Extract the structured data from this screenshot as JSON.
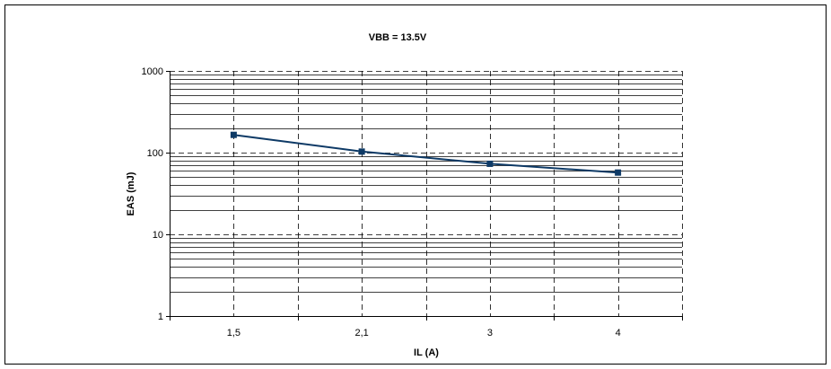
{
  "chart_data": {
    "type": "line",
    "title": "VBB = 13.5V",
    "xlabel": "IL (A)",
    "ylabel": "EAS (mJ)",
    "yscale": "log",
    "ylim": [
      1,
      1000
    ],
    "y_ticks": [
      "1",
      "10",
      "100",
      "1000"
    ],
    "categories": [
      "1,5",
      "2,1",
      "3",
      "4"
    ],
    "series": [
      {
        "values": [
          165,
          103,
          73,
          57
        ],
        "color": "#0e3a66",
        "marker": "square"
      }
    ],
    "grid": true,
    "legend": "none"
  }
}
